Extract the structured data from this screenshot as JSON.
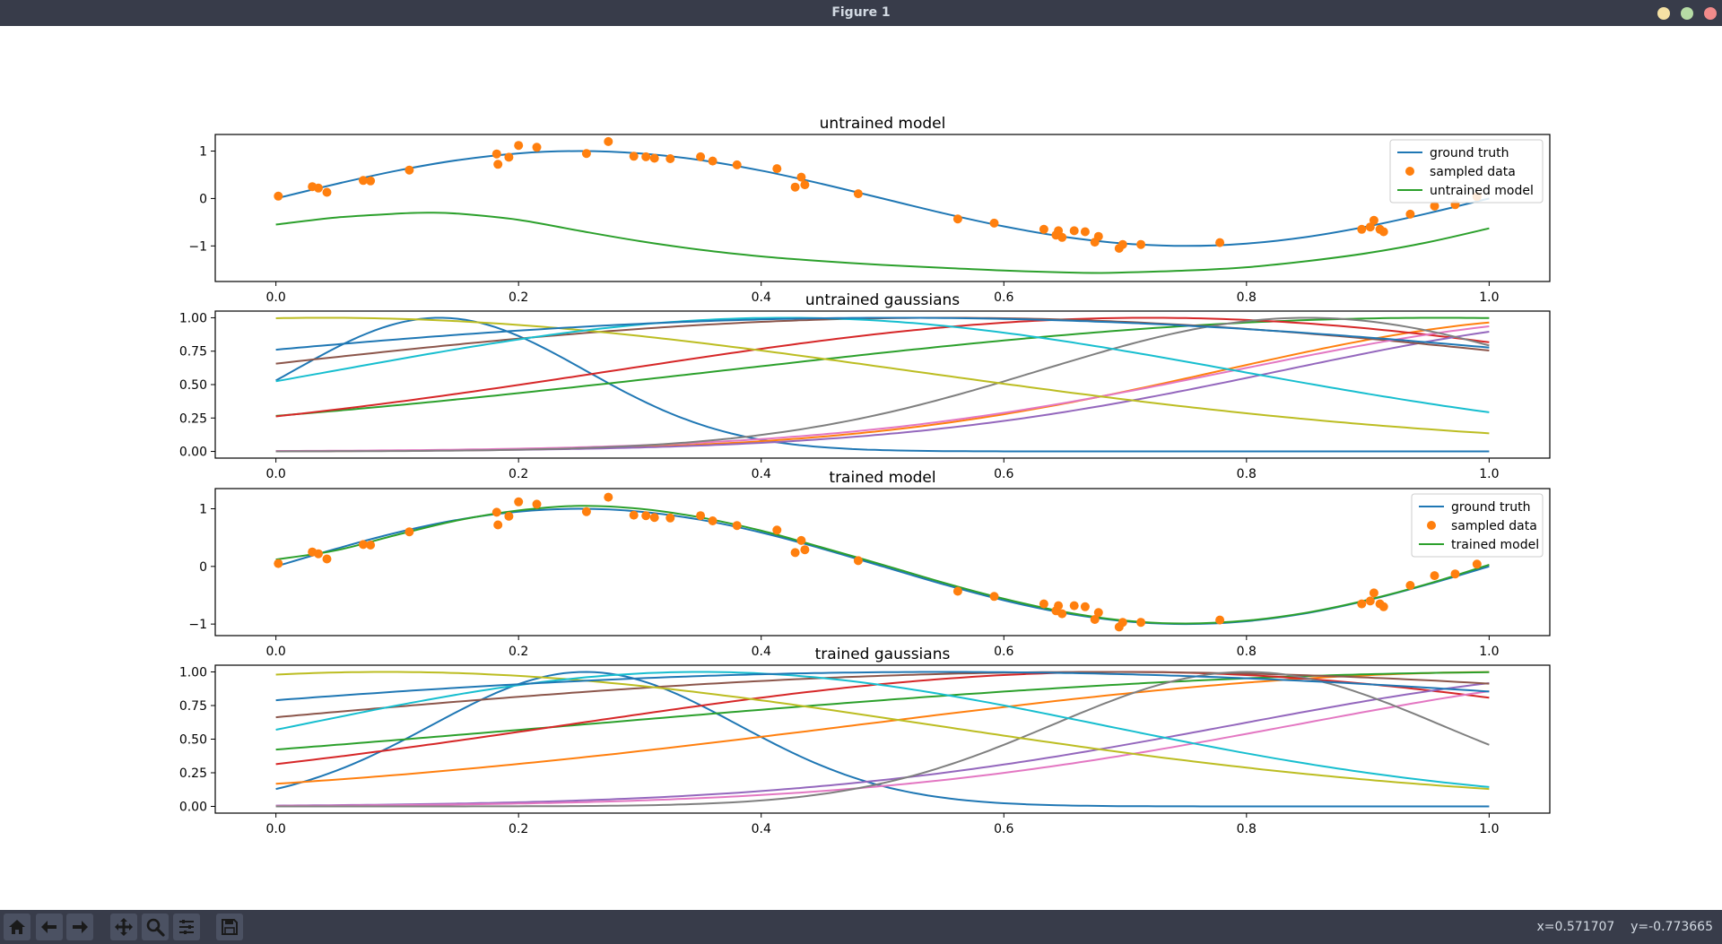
{
  "window": {
    "title": "Figure 1"
  },
  "toolbar": {
    "buttons": [
      "home-icon",
      "back-icon",
      "forward-icon",
      "pan-icon",
      "zoom-icon",
      "configure-icon",
      "save-icon"
    ],
    "coords": "x=0.571707    y=-0.773665"
  },
  "colors": {
    "tab10": [
      "#1f77b4",
      "#ff7f0e",
      "#2ca02c",
      "#d62728",
      "#9467bd",
      "#8c564b",
      "#e377c2",
      "#7f7f7f",
      "#bcbd22",
      "#17becf"
    ],
    "ground_truth": "#1f77b4",
    "sampled": "#ff7f0e",
    "model": "#2ca02c"
  },
  "chart_data": [
    {
      "type": "line",
      "title": "untrained model",
      "xlabel": "",
      "ylabel": "",
      "xlim": [
        -0.05,
        1.05
      ],
      "ylim": [
        -1.75,
        1.35
      ],
      "xticks": [
        0.0,
        0.2,
        0.4,
        0.6,
        0.8,
        1.0
      ],
      "xtick_labels": [
        "0.0",
        "0.2",
        "0.4",
        "0.6",
        "0.8",
        "1.0"
      ],
      "yticks": [
        1,
        0,
        -1
      ],
      "ytick_labels": [
        "1",
        "0",
        "−1"
      ],
      "grid": false,
      "legend": "top-right",
      "series": [
        {
          "name": "ground truth",
          "kind": "line",
          "color": "#1f77b4",
          "x": [
            0,
            0.05,
            0.1,
            0.15,
            0.2,
            0.25,
            0.3,
            0.35,
            0.4,
            0.45,
            0.5,
            0.55,
            0.6,
            0.65,
            0.7,
            0.75,
            0.8,
            0.85,
            0.9,
            0.95,
            1.0
          ],
          "y": [
            0,
            0.309,
            0.588,
            0.809,
            0.951,
            1.0,
            0.951,
            0.809,
            0.588,
            0.309,
            0,
            -0.309,
            -0.588,
            -0.809,
            -0.951,
            -1.0,
            -0.951,
            -0.809,
            -0.588,
            -0.309,
            0
          ]
        },
        {
          "name": "sampled data",
          "kind": "scatter",
          "color": "#ff7f0e",
          "x": [
            0.002,
            0.03,
            0.035,
            0.042,
            0.072,
            0.078,
            0.11,
            0.182,
            0.183,
            0.192,
            0.2,
            0.215,
            0.256,
            0.274,
            0.295,
            0.305,
            0.312,
            0.325,
            0.35,
            0.36,
            0.38,
            0.413,
            0.428,
            0.433,
            0.436,
            0.48,
            0.562,
            0.592,
            0.633,
            0.643,
            0.645,
            0.648,
            0.658,
            0.667,
            0.675,
            0.678,
            0.695,
            0.698,
            0.713,
            0.778,
            0.895,
            0.902,
            0.905,
            0.91,
            0.913,
            0.935,
            0.955,
            0.972,
            0.99
          ],
          "y": [
            0.05,
            0.25,
            0.22,
            0.13,
            0.38,
            0.37,
            0.6,
            0.94,
            0.72,
            0.87,
            1.12,
            1.08,
            0.95,
            1.2,
            0.89,
            0.88,
            0.85,
            0.84,
            0.88,
            0.79,
            0.71,
            0.63,
            0.24,
            0.45,
            0.29,
            0.1,
            -0.43,
            -0.52,
            -0.65,
            -0.77,
            -0.68,
            -0.82,
            -0.68,
            -0.7,
            -0.92,
            -0.8,
            -1.05,
            -0.97,
            -0.97,
            -0.93,
            -0.65,
            -0.6,
            -0.46,
            -0.65,
            -0.7,
            -0.33,
            -0.16,
            -0.13,
            0.04
          ]
        },
        {
          "name": "untrained model",
          "kind": "line",
          "color": "#2ca02c",
          "x": [
            0,
            0.05,
            0.1,
            0.125,
            0.15,
            0.2,
            0.25,
            0.3,
            0.35,
            0.4,
            0.45,
            0.5,
            0.55,
            0.6,
            0.65,
            0.68,
            0.7,
            0.75,
            0.8,
            0.85,
            0.9,
            0.95,
            1.0
          ],
          "y": [
            -0.55,
            -0.4,
            -0.32,
            -0.3,
            -0.32,
            -0.45,
            -0.68,
            -0.9,
            -1.08,
            -1.22,
            -1.32,
            -1.4,
            -1.46,
            -1.52,
            -1.56,
            -1.57,
            -1.56,
            -1.52,
            -1.45,
            -1.32,
            -1.15,
            -0.92,
            -0.63
          ]
        }
      ]
    },
    {
      "type": "line",
      "title": "untrained gaussians",
      "xlabel": "",
      "ylabel": "",
      "xlim": [
        -0.05,
        1.05
      ],
      "ylim": [
        -0.05,
        1.05
      ],
      "xticks": [
        0.0,
        0.2,
        0.4,
        0.6,
        0.8,
        1.0
      ],
      "xtick_labels": [
        "0.0",
        "0.2",
        "0.4",
        "0.6",
        "0.8",
        "1.0"
      ],
      "yticks": [
        0,
        0.25,
        0.5,
        0.75,
        1.0
      ],
      "ytick_labels": [
        "0.00",
        "0.25",
        "0.50",
        "0.75",
        "1.00"
      ],
      "grid": false,
      "gaussians": [
        {
          "color": "#1f77b4",
          "mu": 0.135,
          "sigma": 0.12
        },
        {
          "color": "#ff7f0e",
          "mu": 1.08,
          "sigma": 0.3
        },
        {
          "color": "#2ca02c",
          "mu": 0.96,
          "sigma": 0.59
        },
        {
          "color": "#d62728",
          "mu": 0.72,
          "sigma": 0.44
        },
        {
          "color": "#9467bd",
          "mu": 1.15,
          "sigma": 0.32
        },
        {
          "color": "#8c564b",
          "mu": 0.55,
          "sigma": 0.6
        },
        {
          "color": "#e377c2",
          "mu": 1.12,
          "sigma": 0.33
        },
        {
          "color": "#7f7f7f",
          "mu": 0.85,
          "sigma": 0.22
        },
        {
          "color": "#bcbd22",
          "mu": 0.04,
          "sigma": 0.48
        },
        {
          "color": "#17becf",
          "mu": 0.42,
          "sigma": 0.37
        },
        {
          "color": "#1f77b4",
          "mu": 0.51,
          "sigma": 0.69
        }
      ]
    },
    {
      "type": "line",
      "title": "trained model",
      "xlabel": "",
      "ylabel": "",
      "xlim": [
        -0.05,
        1.05
      ],
      "ylim": [
        -1.2,
        1.35
      ],
      "xticks": [
        0.0,
        0.2,
        0.4,
        0.6,
        0.8,
        1.0
      ],
      "xtick_labels": [
        "0.0",
        "0.2",
        "0.4",
        "0.6",
        "0.8",
        "1.0"
      ],
      "yticks": [
        1,
        0,
        -1
      ],
      "ytick_labels": [
        "1",
        "0",
        "−1"
      ],
      "grid": false,
      "legend": "top-right",
      "series": [
        {
          "name": "ground truth",
          "kind": "line",
          "color": "#1f77b4",
          "x": [
            0,
            0.05,
            0.1,
            0.15,
            0.2,
            0.25,
            0.3,
            0.35,
            0.4,
            0.45,
            0.5,
            0.55,
            0.6,
            0.65,
            0.7,
            0.75,
            0.8,
            0.85,
            0.9,
            0.95,
            1.0
          ],
          "y": [
            0,
            0.309,
            0.588,
            0.809,
            0.951,
            1.0,
            0.951,
            0.809,
            0.588,
            0.309,
            0,
            -0.309,
            -0.588,
            -0.809,
            -0.951,
            -1.0,
            -0.951,
            -0.809,
            -0.588,
            -0.309,
            0
          ]
        },
        {
          "name": "sampled data",
          "kind": "scatter",
          "color": "#ff7f0e",
          "x": [
            0.002,
            0.03,
            0.035,
            0.042,
            0.072,
            0.078,
            0.11,
            0.182,
            0.183,
            0.192,
            0.2,
            0.215,
            0.256,
            0.274,
            0.295,
            0.305,
            0.312,
            0.325,
            0.35,
            0.36,
            0.38,
            0.413,
            0.428,
            0.433,
            0.436,
            0.48,
            0.562,
            0.592,
            0.633,
            0.643,
            0.645,
            0.648,
            0.658,
            0.667,
            0.675,
            0.678,
            0.695,
            0.698,
            0.713,
            0.778,
            0.895,
            0.902,
            0.905,
            0.91,
            0.913,
            0.935,
            0.955,
            0.972,
            0.99
          ],
          "y": [
            0.05,
            0.25,
            0.22,
            0.13,
            0.38,
            0.37,
            0.6,
            0.94,
            0.72,
            0.87,
            1.12,
            1.08,
            0.95,
            1.2,
            0.89,
            0.88,
            0.85,
            0.84,
            0.88,
            0.79,
            0.71,
            0.63,
            0.24,
            0.45,
            0.29,
            0.1,
            -0.43,
            -0.52,
            -0.65,
            -0.77,
            -0.68,
            -0.82,
            -0.68,
            -0.7,
            -0.92,
            -0.8,
            -1.05,
            -0.97,
            -0.97,
            -0.93,
            -0.65,
            -0.6,
            -0.46,
            -0.65,
            -0.7,
            -0.33,
            -0.16,
            -0.13,
            0.04
          ]
        },
        {
          "name": "trained model",
          "kind": "line",
          "color": "#2ca02c",
          "x": [
            0,
            0.05,
            0.1,
            0.15,
            0.2,
            0.25,
            0.3,
            0.35,
            0.4,
            0.45,
            0.5,
            0.55,
            0.6,
            0.65,
            0.7,
            0.75,
            0.8,
            0.85,
            0.9,
            0.95,
            1.0
          ],
          "y": [
            0.12,
            0.28,
            0.55,
            0.8,
            0.97,
            1.05,
            1.0,
            0.85,
            0.62,
            0.33,
            0.03,
            -0.28,
            -0.56,
            -0.79,
            -0.94,
            -0.99,
            -0.94,
            -0.8,
            -0.58,
            -0.3,
            0.03
          ]
        }
      ]
    },
    {
      "type": "line",
      "title": "trained gaussians",
      "xlabel": "",
      "ylabel": "",
      "xlim": [
        -0.05,
        1.05
      ],
      "ylim": [
        -0.05,
        1.05
      ],
      "xticks": [
        0.0,
        0.2,
        0.4,
        0.6,
        0.8,
        1.0
      ],
      "xtick_labels": [
        "0.0",
        "0.2",
        "0.4",
        "0.6",
        "0.8",
        "1.0"
      ],
      "yticks": [
        0,
        0.25,
        0.5,
        0.75,
        1.0
      ],
      "ytick_labels": [
        "0.00",
        "0.25",
        "0.50",
        "0.75",
        "1.00"
      ],
      "grid": false,
      "gaussians": [
        {
          "color": "#1f77b4",
          "mu": 0.255,
          "sigma": 0.126
        },
        {
          "color": "#ff7f0e",
          "mu": 1.02,
          "sigma": 0.54
        },
        {
          "color": "#2ca02c",
          "mu": 1.05,
          "sigma": 0.8
        },
        {
          "color": "#d62728",
          "mu": 0.7,
          "sigma": 0.46
        },
        {
          "color": "#9467bd",
          "mu": 1.15,
          "sigma": 0.36
        },
        {
          "color": "#8c564b",
          "mu": 0.68,
          "sigma": 0.75
        },
        {
          "color": "#e377c2",
          "mu": 1.2,
          "sigma": 0.36
        },
        {
          "color": "#7f7f7f",
          "mu": 0.8,
          "sigma": 0.16
        },
        {
          "color": "#bcbd22",
          "mu": 0.09,
          "sigma": 0.45
        },
        {
          "color": "#17becf",
          "mu": 0.35,
          "sigma": 0.33
        },
        {
          "color": "#1f77b4",
          "mu": 0.55,
          "sigma": 0.8
        }
      ]
    }
  ]
}
